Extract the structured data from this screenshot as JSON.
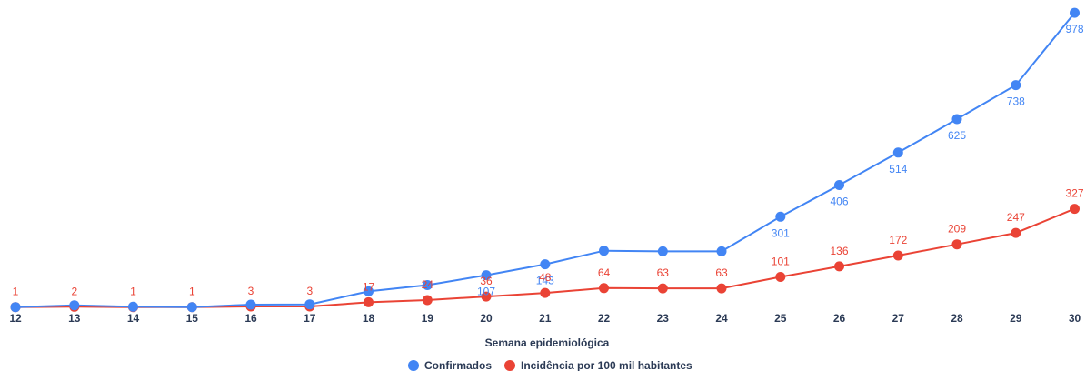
{
  "chart_data": {
    "type": "line",
    "xlabel": "Semana epidemiológica",
    "categories": [
      "12",
      "13",
      "14",
      "15",
      "16",
      "17",
      "18",
      "19",
      "20",
      "21",
      "22",
      "23",
      "24",
      "25",
      "26",
      "27",
      "28",
      "29",
      "30"
    ],
    "series": [
      {
        "name": "Confirmados",
        "color": "#4285f4",
        "values": [
          1,
          7,
          2,
          1,
          9,
          10,
          53,
          74,
          107,
          143,
          188,
          186,
          186,
          301,
          406,
          514,
          625,
          738,
          978
        ],
        "labels": [
          "",
          "",
          "",
          "",
          "",
          "",
          "",
          "",
          "107",
          "143",
          "",
          "",
          "",
          "301",
          "406",
          "514",
          "625",
          "738",
          "978"
        ]
      },
      {
        "name": "Incidência por 100 mil habitantes",
        "color": "#ea4335",
        "values": [
          1,
          2,
          1,
          1,
          3,
          3,
          17,
          24,
          36,
          48,
          64,
          63,
          63,
          101,
          136,
          172,
          209,
          247,
          327
        ],
        "labels": [
          "1",
          "2",
          "1",
          "1",
          "3",
          "3",
          "17",
          "24",
          "36",
          "48",
          "64",
          "63",
          "63",
          "101",
          "136",
          "172",
          "209",
          "247",
          "327"
        ]
      }
    ],
    "legend_position": "bottom",
    "grid": false
  }
}
